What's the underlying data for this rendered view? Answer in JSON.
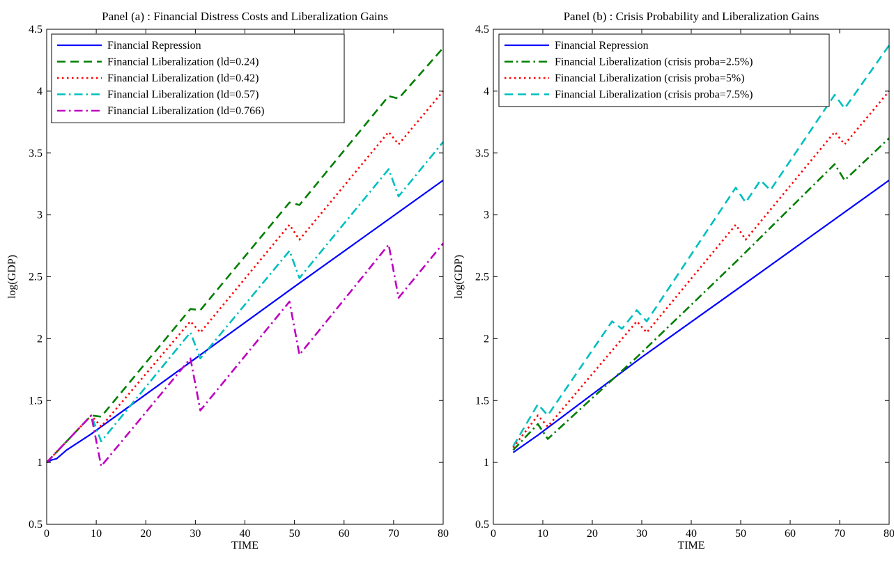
{
  "colors": {
    "repression": "#0000ff",
    "green": "#007f00",
    "red": "#ff0000",
    "cyan": "#00bfbf",
    "magenta": "#bf00bf"
  },
  "chart_data": [
    {
      "type": "line",
      "title": "Panel (a) : Financial Distress Costs and Liberalization Gains",
      "xlabel": "TIME",
      "ylabel": "log(GDP)",
      "xlim": [
        0,
        80
      ],
      "ylim": [
        0.5,
        4.5
      ],
      "xticks": [
        "0",
        "10",
        "20",
        "30",
        "40",
        "50",
        "60",
        "70",
        "80"
      ],
      "yticks": [
        "0.5",
        "1",
        "1.5",
        "2",
        "2.5",
        "3",
        "3.5",
        "4",
        "4.5"
      ],
      "grid": false,
      "legend": "top-left",
      "series": [
        {
          "name": "Financial Repression",
          "color": "#0000ff",
          "style": "solid",
          "points": [
            [
              0,
              1.0
            ],
            [
              1,
              1.02
            ],
            [
              2,
              1.03
            ],
            [
              4,
              1.1
            ],
            [
              9,
              1.23
            ],
            [
              30,
              1.84
            ],
            [
              50,
              2.42
            ],
            [
              80,
              3.28
            ]
          ]
        },
        {
          "name": "Financial Liberalization (ld=0.24)",
          "color": "#007f00",
          "style": "dashed",
          "points": [
            [
              0,
              1.0
            ],
            [
              9,
              1.38
            ],
            [
              11,
              1.37
            ],
            [
              29,
              2.24
            ],
            [
              31,
              2.23
            ],
            [
              49,
              3.1
            ],
            [
              51,
              3.08
            ],
            [
              69,
              3.96
            ],
            [
              71,
              3.94
            ],
            [
              80,
              4.35
            ]
          ]
        },
        {
          "name": "Financial Liberalization (ld=0.42)",
          "color": "#ff0000",
          "style": "dotted",
          "points": [
            [
              0,
              1.0
            ],
            [
              9,
              1.38
            ],
            [
              11,
              1.29
            ],
            [
              29,
              2.14
            ],
            [
              31,
              2.05
            ],
            [
              49,
              2.92
            ],
            [
              51,
              2.8
            ],
            [
              69,
              3.67
            ],
            [
              71,
              3.57
            ],
            [
              80,
              4.0
            ]
          ]
        },
        {
          "name": "Financial Liberalization (ld=0.57)",
          "color": "#00bfbf",
          "style": "dashdot",
          "points": [
            [
              0,
              1.0
            ],
            [
              9,
              1.38
            ],
            [
              11,
              1.17
            ],
            [
              29,
              2.05
            ],
            [
              31,
              1.84
            ],
            [
              49,
              2.71
            ],
            [
              51,
              2.49
            ],
            [
              69,
              3.37
            ],
            [
              71,
              3.15
            ],
            [
              80,
              3.59
            ]
          ]
        },
        {
          "name": "Financial Liberalization (ld=0.766)",
          "color": "#bf00bf",
          "style": "dashdot",
          "points": [
            [
              0,
              1.0
            ],
            [
              9,
              1.38
            ],
            [
              11,
              0.97
            ],
            [
              29,
              1.84
            ],
            [
              31,
              1.42
            ],
            [
              49,
              2.3
            ],
            [
              51,
              1.87
            ],
            [
              69,
              2.76
            ],
            [
              71,
              2.33
            ],
            [
              80,
              2.77
            ]
          ]
        }
      ]
    },
    {
      "type": "line",
      "title": "Panel (b) : Crisis Probability and Liberalization Gains",
      "xlabel": "TIME",
      "ylabel": "log(GDP)",
      "xlim": [
        0,
        80
      ],
      "ylim": [
        0.5,
        4.5
      ],
      "xticks": [
        "0",
        "10",
        "20",
        "30",
        "40",
        "50",
        "60",
        "70",
        "80"
      ],
      "yticks": [
        "0.5",
        "1",
        "1.5",
        "2",
        "2.5",
        "3",
        "3.5",
        "4",
        "4.5"
      ],
      "grid": false,
      "legend": "top-left",
      "series": [
        {
          "name": "Financial Repression",
          "color": "#0000ff",
          "style": "solid",
          "points": [
            [
              4,
              1.08
            ],
            [
              9,
              1.22
            ],
            [
              30,
              1.85
            ],
            [
              50,
              2.42
            ],
            [
              80,
              3.28
            ]
          ]
        },
        {
          "name": "Financial Liberalization (crisis proba=2.5%)",
          "color": "#007f00",
          "style": "dashdot",
          "points": [
            [
              4,
              1.1
            ],
            [
              9,
              1.31
            ],
            [
              11,
              1.19
            ],
            [
              29,
              1.85
            ],
            [
              49,
              2.62
            ],
            [
              69,
              3.41
            ],
            [
              71,
              3.28
            ],
            [
              80,
              3.62
            ]
          ]
        },
        {
          "name": "Financial Liberalization  (crisis proba=5%)",
          "color": "#ff0000",
          "style": "dotted",
          "points": [
            [
              4,
              1.12
            ],
            [
              9,
              1.38
            ],
            [
              11,
              1.29
            ],
            [
              29,
              2.14
            ],
            [
              31,
              2.05
            ],
            [
              49,
              2.92
            ],
            [
              51,
              2.8
            ],
            [
              69,
              3.67
            ],
            [
              71,
              3.57
            ],
            [
              80,
              4.0
            ]
          ]
        },
        {
          "name": "Financial Liberalization  (crisis proba=7.5%)",
          "color": "#00bfbf",
          "style": "dashed",
          "points": [
            [
              4,
              1.13
            ],
            [
              9,
              1.47
            ],
            [
              11,
              1.38
            ],
            [
              24,
              2.14
            ],
            [
              26,
              2.08
            ],
            [
              29,
              2.23
            ],
            [
              31,
              2.14
            ],
            [
              49,
              3.22
            ],
            [
              51,
              3.1
            ],
            [
              54,
              3.28
            ],
            [
              56,
              3.2
            ],
            [
              69,
              3.97
            ],
            [
              71,
              3.86
            ],
            [
              80,
              4.37
            ]
          ]
        }
      ]
    }
  ]
}
